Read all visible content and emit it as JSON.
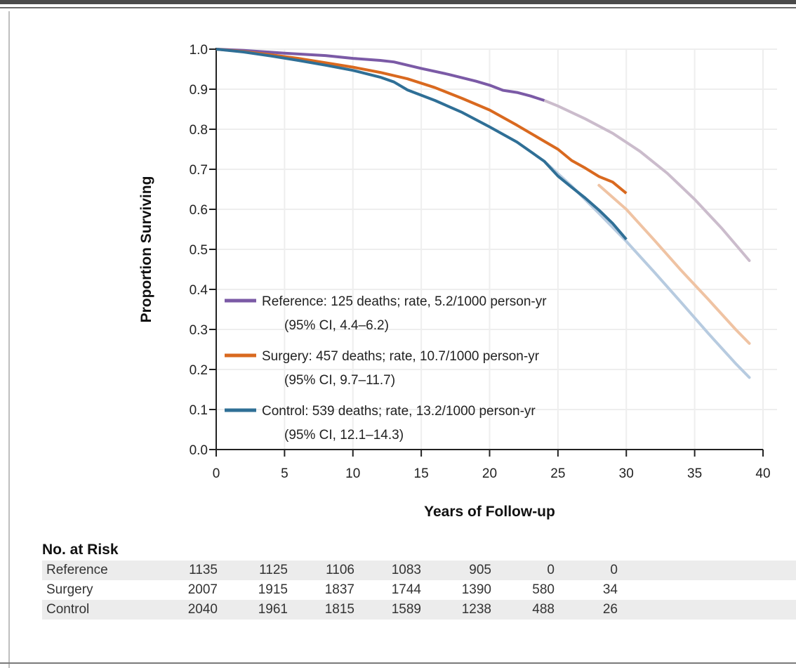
{
  "chart_data": {
    "type": "line",
    "title": "",
    "xlabel": "Years of Follow-up",
    "ylabel": "Proportion Surviving",
    "xlim": [
      0,
      40
    ],
    "ylim": [
      0,
      1.0
    ],
    "xticks": [
      "0",
      "5",
      "10",
      "15",
      "20",
      "25",
      "30",
      "35",
      "40"
    ],
    "yticks": [
      "0.0",
      "0.1",
      "0.2",
      "0.3",
      "0.4",
      "0.5",
      "0.6",
      "0.7",
      "0.8",
      "0.9",
      "1.0"
    ],
    "grid": true,
    "legend_position": "bottom-left",
    "series": [
      {
        "name": "Reference",
        "legend_line1": "Reference: 125 deaths; rate, 5.2/1000 person-yr",
        "legend_line2": "(95% CI, 4.4–6.2)",
        "color": "#7b5aa6",
        "faded_color": "#cbbccc",
        "observed": [
          [
            0,
            1.0
          ],
          [
            2,
            0.997
          ],
          [
            5,
            0.99
          ],
          [
            8,
            0.984
          ],
          [
            10,
            0.977
          ],
          [
            12,
            0.972
          ],
          [
            13,
            0.968
          ],
          [
            15,
            0.952
          ],
          [
            17,
            0.937
          ],
          [
            19,
            0.92
          ],
          [
            20,
            0.91
          ],
          [
            21,
            0.897
          ],
          [
            22,
            0.892
          ],
          [
            23,
            0.883
          ],
          [
            24,
            0.872
          ]
        ],
        "projected": [
          [
            24,
            0.872
          ],
          [
            25,
            0.858
          ],
          [
            27,
            0.826
          ],
          [
            29,
            0.79
          ],
          [
            31,
            0.745
          ],
          [
            33,
            0.69
          ],
          [
            35,
            0.625
          ],
          [
            37,
            0.552
          ],
          [
            39,
            0.472
          ]
        ]
      },
      {
        "name": "Surgery",
        "legend_line1": "Surgery: 457 deaths; rate, 10.7/1000 person-yr",
        "legend_line2": "(95% CI, 9.7–11.7)",
        "color": "#d9691f",
        "faded_color": "#efc3a3",
        "observed": [
          [
            0,
            1.0
          ],
          [
            2,
            0.994
          ],
          [
            4,
            0.986
          ],
          [
            6,
            0.977
          ],
          [
            8,
            0.966
          ],
          [
            10,
            0.955
          ],
          [
            12,
            0.942
          ],
          [
            14,
            0.926
          ],
          [
            16,
            0.904
          ],
          [
            18,
            0.877
          ],
          [
            20,
            0.848
          ],
          [
            22,
            0.81
          ],
          [
            24,
            0.77
          ],
          [
            25,
            0.75
          ],
          [
            26,
            0.722
          ],
          [
            27,
            0.703
          ],
          [
            28,
            0.682
          ],
          [
            29,
            0.668
          ],
          [
            30,
            0.64
          ]
        ],
        "projected": [
          [
            28,
            0.66
          ],
          [
            30,
            0.6
          ],
          [
            32,
            0.525
          ],
          [
            34,
            0.448
          ],
          [
            36,
            0.375
          ],
          [
            38,
            0.3
          ],
          [
            39,
            0.265
          ]
        ]
      },
      {
        "name": "Control",
        "legend_line1": "Control: 539 deaths; rate, 13.2/1000 person-yr",
        "legend_line2": "(95% CI, 12.1–14.3)",
        "color": "#2f6f96",
        "faded_color": "#b7cbe0",
        "observed": [
          [
            0,
            1.0
          ],
          [
            2,
            0.993
          ],
          [
            4,
            0.983
          ],
          [
            6,
            0.972
          ],
          [
            8,
            0.96
          ],
          [
            10,
            0.947
          ],
          [
            12,
            0.93
          ],
          [
            13,
            0.918
          ],
          [
            14,
            0.898
          ],
          [
            16,
            0.872
          ],
          [
            18,
            0.842
          ],
          [
            20,
            0.806
          ],
          [
            22,
            0.768
          ],
          [
            24,
            0.72
          ],
          [
            25,
            0.683
          ],
          [
            26,
            0.655
          ],
          [
            27,
            0.628
          ],
          [
            28,
            0.598
          ],
          [
            29,
            0.565
          ],
          [
            30,
            0.525
          ]
        ],
        "projected": [
          [
            24,
            0.72
          ],
          [
            26,
            0.658
          ],
          [
            28,
            0.59
          ],
          [
            30,
            0.52
          ],
          [
            32,
            0.445
          ],
          [
            34,
            0.368
          ],
          [
            36,
            0.29
          ],
          [
            38,
            0.215
          ],
          [
            39,
            0.18
          ]
        ]
      }
    ]
  },
  "risk_table": {
    "title": "No. at Risk",
    "rows": [
      {
        "label": "Reference",
        "values": [
          "1135",
          "1125",
          "1106",
          "1083",
          "905",
          "0",
          "0"
        ]
      },
      {
        "label": "Surgery",
        "values": [
          "2007",
          "1915",
          "1837",
          "1744",
          "1390",
          "580",
          "34"
        ]
      },
      {
        "label": "Control",
        "values": [
          "2040",
          "1961",
          "1815",
          "1589",
          "1238",
          "488",
          "26"
        ]
      }
    ]
  }
}
